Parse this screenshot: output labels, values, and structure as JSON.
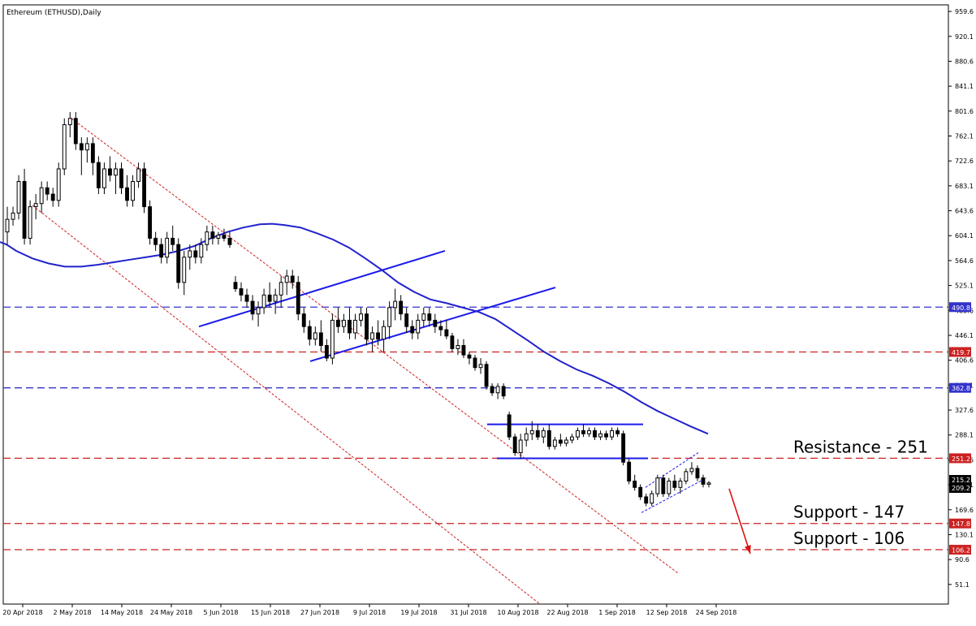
{
  "chart_data": {
    "type": "candlestick",
    "title": "Ethereum (ETHUSD),Daily",
    "y_ticks": [
      "959.6",
      "920.1",
      "880.6",
      "841.1",
      "801.6",
      "762.1",
      "722.6",
      "683.1",
      "643.6",
      "604.1",
      "564.6",
      "525.1",
      "485.6",
      "446.1",
      "406.6",
      "367.1",
      "327.6",
      "288.1",
      "248.6",
      "209.1",
      "169.6",
      "130.1",
      "90.6",
      "51.1"
    ],
    "x_ticks": [
      "20 Apr 2018",
      "2 May 2018",
      "14 May 2018",
      "24 May 2018",
      "5 Jun 2018",
      "15 Jun 2018",
      "27 Jun 2018",
      "9 Jul 2018",
      "19 Jul 2018",
      "31 Jul 2018",
      "10 Aug 2018",
      "22 Aug 2018",
      "1 Sep 2018",
      "12 Sep 2018",
      "24 Sep 2018"
    ],
    "ylim": [
      20,
      970
    ],
    "levels": [
      {
        "value": 490.8,
        "label": "490.8",
        "color": "#3333cc"
      },
      {
        "value": 419.7,
        "label": "419.7",
        "color": "#cc2222"
      },
      {
        "value": 362.8,
        "label": "362.8",
        "color": "#3333cc"
      },
      {
        "value": 251.2,
        "label": "251.2",
        "color": "#cc2222"
      },
      {
        "value": 147.8,
        "label": "147.8",
        "color": "#cc2222"
      },
      {
        "value": 106.2,
        "label": "106.2",
        "color": "#cc2222"
      }
    ],
    "current_price": {
      "value": 209.2,
      "label": "209.2",
      "top_label": "215.2"
    },
    "annotations": [
      {
        "text": "Resistance - 251",
        "value": 251.2
      },
      {
        "text": "Support - 147",
        "value": 147.8
      },
      {
        "text": "Support - 106",
        "value": 106.2
      }
    ],
    "candles": [
      [
        610,
        650,
        590,
        630
      ],
      [
        630,
        650,
        620,
        640
      ],
      [
        640,
        700,
        630,
        690
      ],
      [
        690,
        710,
        590,
        600
      ],
      [
        600,
        660,
        590,
        650
      ],
      [
        650,
        670,
        630,
        655
      ],
      [
        655,
        690,
        640,
        680
      ],
      [
        680,
        690,
        660,
        670
      ],
      [
        670,
        680,
        650,
        660
      ],
      [
        660,
        720,
        650,
        710
      ],
      [
        710,
        790,
        700,
        780
      ],
      [
        780,
        800,
        760,
        790
      ],
      [
        790,
        800,
        740,
        750
      ],
      [
        750,
        760,
        700,
        740
      ],
      [
        740,
        760,
        720,
        750
      ],
      [
        750,
        760,
        700,
        720
      ],
      [
        720,
        730,
        670,
        680
      ],
      [
        680,
        720,
        670,
        710
      ],
      [
        710,
        730,
        690,
        700
      ],
      [
        700,
        720,
        670,
        710
      ],
      [
        710,
        720,
        670,
        680
      ],
      [
        680,
        700,
        650,
        660
      ],
      [
        660,
        700,
        650,
        690
      ],
      [
        690,
        720,
        680,
        710
      ],
      [
        710,
        720,
        640,
        650
      ],
      [
        650,
        660,
        590,
        600
      ],
      [
        600,
        610,
        580,
        590
      ],
      [
        590,
        600,
        560,
        570
      ],
      [
        570,
        610,
        560,
        600
      ],
      [
        600,
        620,
        580,
        590
      ],
      [
        590,
        600,
        520,
        530
      ],
      [
        530,
        580,
        510,
        570
      ],
      [
        570,
        590,
        550,
        580
      ],
      [
        580,
        590,
        560,
        570
      ],
      [
        570,
        600,
        560,
        590
      ],
      [
        590,
        620,
        580,
        610
      ],
      [
        610,
        620,
        590,
        600
      ],
      [
        600,
        610,
        590,
        605
      ],
      [
        605,
        615,
        595,
        600
      ],
      [
        600,
        610,
        585,
        590
      ],
      [
        530,
        540,
        515,
        520
      ],
      [
        520,
        530,
        500,
        510
      ],
      [
        510,
        520,
        490,
        500
      ],
      [
        500,
        510,
        470,
        480
      ],
      [
        480,
        500,
        460,
        490
      ],
      [
        490,
        520,
        480,
        510
      ],
      [
        510,
        530,
        490,
        500
      ],
      [
        500,
        520,
        480,
        510
      ],
      [
        510,
        540,
        490,
        530
      ],
      [
        530,
        550,
        510,
        540
      ],
      [
        540,
        550,
        520,
        530
      ],
      [
        530,
        540,
        470,
        480
      ],
      [
        480,
        490,
        450,
        460
      ],
      [
        460,
        470,
        430,
        440
      ],
      [
        440,
        460,
        430,
        450
      ],
      [
        450,
        470,
        420,
        430
      ],
      [
        430,
        440,
        405,
        410
      ],
      [
        410,
        480,
        400,
        470
      ],
      [
        470,
        490,
        450,
        460
      ],
      [
        460,
        480,
        450,
        470
      ],
      [
        470,
        490,
        440,
        450
      ],
      [
        450,
        480,
        440,
        470
      ],
      [
        470,
        490,
        460,
        480
      ],
      [
        480,
        490,
        430,
        440
      ],
      [
        440,
        460,
        420,
        450
      ],
      [
        450,
        470,
        430,
        440
      ],
      [
        440,
        470,
        420,
        460
      ],
      [
        460,
        500,
        440,
        490
      ],
      [
        490,
        520,
        470,
        500
      ],
      [
        500,
        510,
        470,
        480
      ],
      [
        480,
        490,
        450,
        460
      ],
      [
        460,
        470,
        440,
        450
      ],
      [
        450,
        480,
        440,
        470
      ],
      [
        470,
        490,
        460,
        480
      ],
      [
        480,
        490,
        460,
        470
      ],
      [
        470,
        480,
        450,
        460
      ],
      [
        460,
        470,
        445,
        455
      ],
      [
        455,
        470,
        440,
        445
      ],
      [
        445,
        450,
        420,
        425
      ],
      [
        425,
        440,
        415,
        430
      ],
      [
        430,
        440,
        410,
        415
      ],
      [
        415,
        420,
        400,
        410
      ],
      [
        410,
        415,
        390,
        395
      ],
      [
        395,
        410,
        385,
        400
      ],
      [
        400,
        405,
        360,
        365
      ],
      [
        365,
        370,
        350,
        355
      ],
      [
        355,
        370,
        345,
        365
      ],
      [
        365,
        370,
        345,
        350
      ],
      [
        320,
        325,
        280,
        285
      ],
      [
        285,
        290,
        255,
        260
      ],
      [
        260,
        290,
        250,
        280
      ],
      [
        280,
        300,
        270,
        290
      ],
      [
        290,
        310,
        280,
        295
      ],
      [
        295,
        305,
        280,
        285
      ],
      [
        285,
        300,
        275,
        295
      ],
      [
        295,
        305,
        265,
        270
      ],
      [
        270,
        285,
        265,
        280
      ],
      [
        280,
        290,
        270,
        275
      ],
      [
        275,
        285,
        270,
        280
      ],
      [
        280,
        290,
        275,
        285
      ],
      [
        285,
        300,
        280,
        295
      ],
      [
        295,
        305,
        285,
        290
      ],
      [
        290,
        300,
        285,
        295
      ],
      [
        295,
        300,
        280,
        285
      ],
      [
        285,
        295,
        280,
        290
      ],
      [
        290,
        295,
        280,
        285
      ],
      [
        285,
        300,
        280,
        295
      ],
      [
        295,
        300,
        285,
        290
      ],
      [
        290,
        295,
        240,
        245
      ],
      [
        245,
        250,
        210,
        215
      ],
      [
        215,
        225,
        200,
        205
      ],
      [
        205,
        210,
        185,
        190
      ],
      [
        190,
        195,
        175,
        180
      ],
      [
        180,
        200,
        175,
        195
      ],
      [
        195,
        225,
        190,
        220
      ],
      [
        220,
        225,
        190,
        195
      ],
      [
        195,
        220,
        190,
        215
      ],
      [
        215,
        225,
        200,
        205
      ],
      [
        205,
        220,
        195,
        215
      ],
      [
        215,
        235,
        210,
        230
      ],
      [
        230,
        245,
        225,
        235
      ],
      [
        235,
        240,
        215,
        220
      ],
      [
        220,
        225,
        205,
        210
      ],
      [
        210,
        215,
        205,
        212
      ]
    ],
    "moving_average": [
      [
        0,
        594
      ],
      [
        8,
        590
      ],
      [
        20,
        580
      ],
      [
        40,
        568
      ],
      [
        60,
        560
      ],
      [
        80,
        555
      ],
      [
        100,
        555
      ],
      [
        120,
        558
      ],
      [
        140,
        562
      ],
      [
        160,
        566
      ],
      [
        180,
        570
      ],
      [
        200,
        574
      ],
      [
        220,
        580
      ],
      [
        240,
        588
      ],
      [
        260,
        600
      ],
      [
        280,
        610
      ],
      [
        300,
        617
      ],
      [
        320,
        622
      ],
      [
        335,
        623
      ],
      [
        350,
        621
      ],
      [
        370,
        617
      ],
      [
        390,
        608
      ],
      [
        410,
        598
      ],
      [
        430,
        585
      ],
      [
        450,
        568
      ],
      [
        470,
        550
      ],
      [
        490,
        530
      ],
      [
        510,
        515
      ],
      [
        530,
        503
      ],
      [
        550,
        497
      ],
      [
        570,
        490
      ],
      [
        590,
        483
      ],
      [
        610,
        472
      ],
      [
        630,
        455
      ],
      [
        650,
        438
      ],
      [
        670,
        420
      ],
      [
        690,
        405
      ],
      [
        710,
        392
      ],
      [
        730,
        382
      ],
      [
        750,
        370
      ],
      [
        770,
        356
      ],
      [
        790,
        340
      ],
      [
        810,
        326
      ],
      [
        830,
        314
      ],
      [
        850,
        302
      ],
      [
        872,
        290
      ]
    ],
    "trend_lines": [
      {
        "color": "#cc2222",
        "style": "dashed",
        "points": [
          [
            88,
            790
          ],
          [
            836,
            68
          ]
        ]
      },
      {
        "color": "#cc2222",
        "style": "dashed",
        "points": [
          [
            40,
            652
          ],
          [
            665,
            20
          ]
        ]
      },
      {
        "color": "#1a1aee",
        "style": "solid",
        "points": [
          [
            245,
            460
          ],
          [
            548,
            580
          ]
        ]
      },
      {
        "color": "#1a1aee",
        "style": "solid",
        "points": [
          [
            382,
            405
          ],
          [
            684,
            522
          ]
        ]
      },
      {
        "color": "#1a1aee",
        "style": "solid",
        "points": [
          [
            600,
            305
          ],
          [
            792,
            305
          ]
        ]
      },
      {
        "color": "#1a1aee",
        "style": "solid",
        "points": [
          [
            612,
            251
          ],
          [
            798,
            251
          ]
        ]
      },
      {
        "color": "#1a1aee",
        "style": "dashed",
        "points": [
          [
            790,
            165
          ],
          [
            870,
            220
          ]
        ]
      },
      {
        "color": "#1a1aee",
        "style": "dashed",
        "points": [
          [
            795,
            205
          ],
          [
            860,
            260
          ]
        ]
      }
    ],
    "forecast_arrow": {
      "color": "#dd1111",
      "from": [
        898,
        203
      ],
      "to": [
        924,
        100
      ]
    }
  }
}
